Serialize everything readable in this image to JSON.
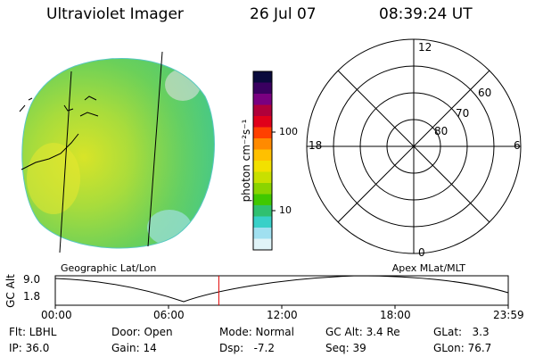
{
  "header": {
    "title": "Ultraviolet Imager",
    "date": "26 Jul 07",
    "time": "08:39:24 UT"
  },
  "colorbar": {
    "unit": "photon cm⁻²s⁻¹",
    "tick_labels": [
      "100",
      "10"
    ],
    "colors": [
      "#0a0a3c",
      "#3a0060",
      "#7a0080",
      "#b0003a",
      "#e0001a",
      "#ff4000",
      "#ff8a00",
      "#ffc000",
      "#f2e000",
      "#c8e000",
      "#8ad400",
      "#40c800",
      "#30c070",
      "#38d0c8",
      "#a0e0f0",
      "#e0f4f8"
    ]
  },
  "polar_plot": {
    "hour_labels": [
      "12",
      "18",
      "6",
      "0"
    ],
    "lat_labels": [
      "60",
      "70",
      "80"
    ]
  },
  "captions": {
    "left": "Geographic Lat/Lon",
    "right": "Apex MLat/MLT"
  },
  "altitude_plot": {
    "axis_label": "GC Alt",
    "ytick_labels": [
      "9.0",
      "1.8"
    ],
    "xtick_labels": [
      "00:00",
      "06:00",
      "12:00",
      "18:00",
      "23:59"
    ],
    "current_time_fraction": 0.361
  },
  "info": {
    "flt": "Flt: LBHL",
    "door": "Door: Open",
    "mode": "Mode: Normal",
    "gc_alt": "GC Alt: 3.4 Re",
    "glat": "GLat:   3.3",
    "ip": "IP: 36.0",
    "gain": "Gain: 14",
    "dsp": "Dsp:   -7.2",
    "seq": "Seq: 39",
    "glon": "GLon: 76.7"
  }
}
